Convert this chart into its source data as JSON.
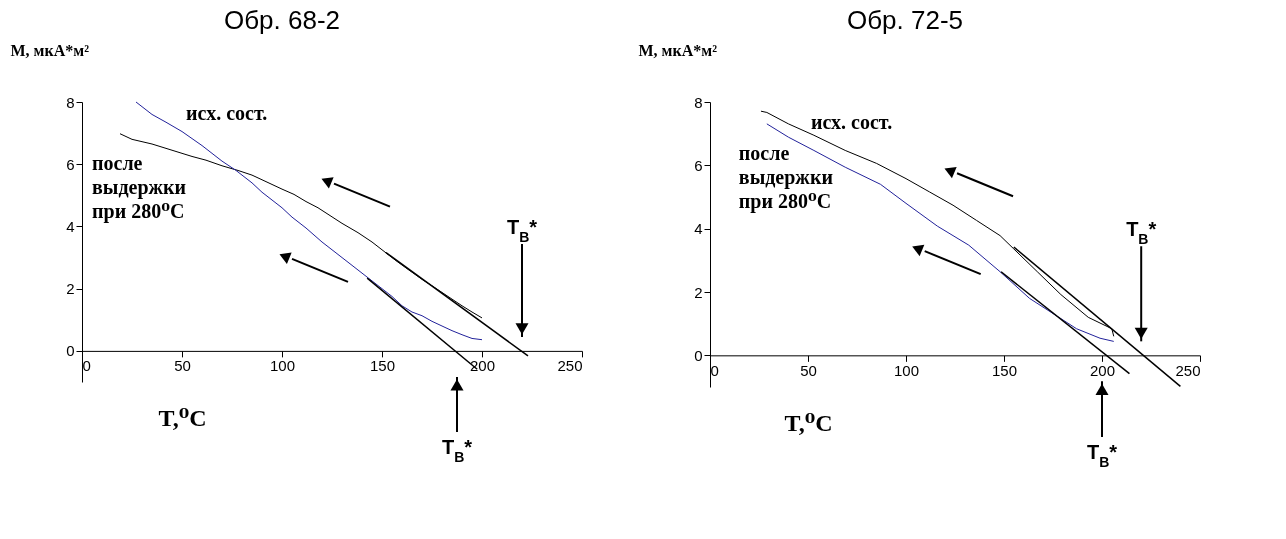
{
  "chart_data": [
    {
      "type": "line",
      "title": "Обр. 68-2",
      "xlabel": "T,⁰C",
      "ylabel": "M, мкА*м²",
      "xlim": [
        0,
        250
      ],
      "ylim": [
        -1,
        8
      ],
      "xticks": [
        0,
        50,
        100,
        150,
        200,
        250
      ],
      "yticks": [
        0,
        2,
        4,
        6,
        8
      ],
      "series": [
        {
          "name": "после\nвыдержки\nпри 280⁰C",
          "color": "#000000",
          "x": [
            19,
            25,
            35,
            45,
            55,
            62,
            70,
            78,
            85,
            94,
            100,
            106,
            112,
            118,
            124,
            130,
            138,
            145,
            151,
            157,
            163,
            170,
            176,
            183,
            190,
            195,
            200
          ],
          "values": [
            6.98,
            6.8,
            6.65,
            6.45,
            6.25,
            6.13,
            5.95,
            5.8,
            5.65,
            5.38,
            5.2,
            5.03,
            4.8,
            4.6,
            4.35,
            4.1,
            3.8,
            3.5,
            3.2,
            2.9,
            2.62,
            2.3,
            2.05,
            1.75,
            1.45,
            1.25,
            1.06
          ]
        },
        {
          "name": "исх. сост.",
          "color": "#22229b",
          "x": [
            27,
            35,
            42,
            50,
            60,
            70,
            77,
            85,
            90,
            100,
            105,
            112,
            120,
            127,
            132,
            140,
            144,
            150,
            155,
            160,
            165,
            170,
            175,
            180,
            185,
            190,
            195,
            200
          ],
          "values": [
            8.0,
            7.6,
            7.35,
            7.05,
            6.6,
            6.1,
            5.8,
            5.4,
            5.1,
            4.6,
            4.3,
            3.95,
            3.5,
            3.15,
            2.9,
            2.5,
            2.3,
            2.0,
            1.75,
            1.45,
            1.25,
            1.13,
            0.95,
            0.8,
            0.65,
            0.52,
            0.4,
            0.36
          ]
        },
        {
          "color": "#000000",
          "x": [
            152,
            223
          ],
          "values": [
            3.16,
            -0.16
          ]
        },
        {
          "color": "#000000",
          "x": [
            142.6,
            197.6
          ],
          "values": [
            2.34,
            -0.59
          ]
        }
      ],
      "ref_lines": [
        {
          "axis": "x",
          "value": 220,
          "label": "T$_{B}$*"
        },
        {
          "axis": "x",
          "value": 187.5,
          "label": "T$_{B}$*"
        }
      ]
    },
    {
      "type": "line",
      "title": "Обр. 72-5",
      "xlabel": "T,⁰C",
      "ylabel": "M, мкА*м²",
      "xlim": [
        0,
        250
      ],
      "ylim": [
        -1,
        8
      ],
      "xticks": [
        0,
        50,
        100,
        150,
        200,
        250
      ],
      "yticks": [
        0,
        2,
        4,
        6,
        8
      ],
      "series": [
        {
          "name": "исх. сост.",
          "color": "#000000",
          "x": [
            26,
            29,
            40,
            53,
            69,
            85,
            100,
            112,
            124,
            136,
            148,
            155,
            167,
            179,
            193,
            205,
            206
          ],
          "values": [
            7.71,
            7.67,
            7.31,
            6.95,
            6.47,
            6.06,
            5.58,
            5.16,
            4.74,
            4.26,
            3.78,
            3.36,
            2.64,
            1.92,
            1.2,
            0.84,
            0.6
          ]
        },
        {
          "name": "после\nвыдержки\nпри 280⁰C",
          "color": "#22229b",
          "x": [
            29,
            40,
            53,
            69,
            87,
            100,
            116,
            132,
            148,
            163,
            175,
            187,
            199,
            206
          ],
          "values": [
            7.31,
            6.89,
            6.47,
            5.94,
            5.4,
            4.8,
            4.08,
            3.48,
            2.64,
            1.8,
            1.32,
            0.84,
            0.54,
            0.44
          ]
        },
        {
          "color": "#000000",
          "x": [
            155,
            240
          ],
          "values": [
            3.42,
            -0.98
          ]
        },
        {
          "color": "#000000",
          "x": [
            148.5,
            214
          ],
          "values": [
            2.64,
            -0.58
          ]
        }
      ],
      "ref_lines": [
        {
          "axis": "x",
          "value": 220,
          "label": "T$_{B}$*"
        },
        {
          "axis": "x",
          "value": 200,
          "label": "T$_{B}$*"
        }
      ]
    }
  ]
}
